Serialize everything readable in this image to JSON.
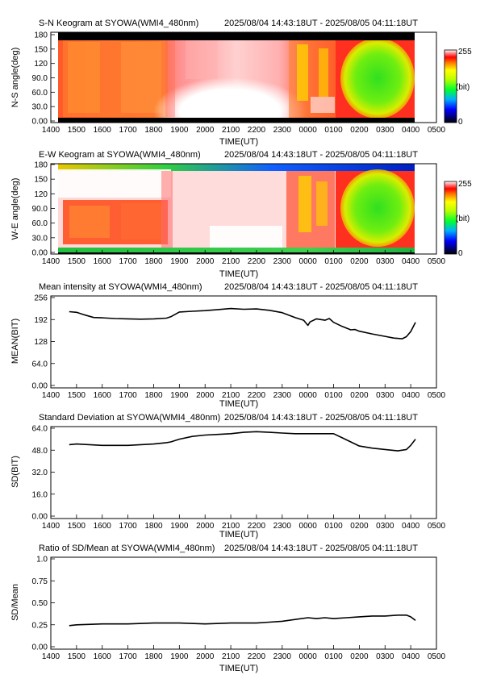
{
  "time_range": "2025/08/04 14:43:18UT - 2025/08/05 04:11:18UT",
  "xlabel": "TIME(UT)",
  "x_ticks": [
    "1400",
    "1500",
    "1600",
    "1700",
    "1800",
    "1900",
    "2000",
    "2100",
    "2200",
    "2300",
    "0000",
    "0100",
    "0200",
    "0300",
    "0400",
    "0500"
  ],
  "colorbar": {
    "max_label": "255",
    "min_label": "0",
    "unit_label": "(bit)"
  },
  "colors": {
    "line": "#000000",
    "frame": "#000000",
    "mask": "#000000"
  },
  "chart_data": [
    {
      "type": "heatmap",
      "title": "S-N Keogram at SYOWA(WMI4_480nm)",
      "ylabel": "N-S angle(deg)",
      "y_ticks": [
        "0.00",
        "30.0",
        "60.0",
        "90.0",
        "120",
        "150",
        "180"
      ],
      "ylim": [
        0,
        180
      ],
      "xlim": [
        "14:00",
        "05:00"
      ],
      "data_span": [
        "14:43",
        "04:11"
      ],
      "value_range": [
        0,
        255
      ]
    },
    {
      "type": "heatmap",
      "title": "E-W Keogram at SYOWA(WMI4_480nm)",
      "ylabel": "W-E angle(deg)",
      "y_ticks": [
        "0.00",
        "30.0",
        "60.0",
        "90.0",
        "120",
        "150",
        "180"
      ],
      "ylim": [
        0,
        180
      ],
      "xlim": [
        "14:00",
        "05:00"
      ],
      "data_span": [
        "14:43",
        "04:11"
      ],
      "value_range": [
        0,
        255
      ]
    },
    {
      "type": "line",
      "title": "Mean intensity at SYOWA(WMI4_480nm)",
      "ylabel": "MEAN(BIT)",
      "y_ticks": [
        "0.00",
        "64.0",
        "128",
        "192",
        "256"
      ],
      "ylim": [
        0,
        256
      ],
      "x": [
        "14:43",
        "15:00",
        "15:20",
        "15:40",
        "16:00",
        "16:30",
        "17:00",
        "17:30",
        "18:00",
        "18:30",
        "18:40",
        "19:00",
        "19:30",
        "20:00",
        "20:30",
        "21:00",
        "21:30",
        "22:00",
        "22:30",
        "23:00",
        "23:30",
        "23:50",
        "00:00",
        "00:05",
        "00:20",
        "00:40",
        "00:50",
        "01:00",
        "01:20",
        "01:40",
        "01:50",
        "02:00",
        "02:30",
        "03:00",
        "03:20",
        "03:40",
        "03:50",
        "04:00",
        "04:11"
      ],
      "values": [
        215,
        213,
        205,
        198,
        197,
        195,
        194,
        193,
        194,
        196,
        200,
        214,
        216,
        218,
        221,
        224,
        222,
        223,
        219,
        212,
        198,
        190,
        175,
        185,
        194,
        190,
        195,
        184,
        172,
        162,
        163,
        158,
        150,
        143,
        138,
        136,
        142,
        157,
        184
      ]
    },
    {
      "type": "line",
      "title": "Standard Deviation at SYOWA(WMI4_480nm)",
      "ylabel": "SD(BIT)",
      "y_ticks": [
        "0.00",
        "16.0",
        "32.0",
        "48.0",
        "64.0"
      ],
      "ylim": [
        0,
        64
      ],
      "x": [
        "14:43",
        "15:00",
        "15:30",
        "16:00",
        "16:30",
        "17:00",
        "17:30",
        "18:00",
        "18:30",
        "18:40",
        "19:00",
        "19:30",
        "20:00",
        "20:30",
        "21:00",
        "21:30",
        "22:00",
        "22:30",
        "23:00",
        "23:30",
        "00:00",
        "00:30",
        "01:00",
        "01:20",
        "01:40",
        "02:00",
        "02:30",
        "03:00",
        "03:30",
        "03:50",
        "04:00",
        "04:11"
      ],
      "values": [
        52,
        52.5,
        52,
        51.5,
        51.5,
        51.5,
        52,
        52.5,
        53.5,
        54,
        56,
        58,
        59,
        59.5,
        60,
        61,
        61.5,
        61,
        60.5,
        60,
        60,
        60,
        60,
        57,
        54,
        51,
        49.5,
        48.5,
        47.5,
        48.5,
        51.5,
        56
      ]
    },
    {
      "type": "line",
      "title": "Ratio of SD/Mean at SYOWA(WMI4_480nm)",
      "ylabel": "SD/Mean",
      "y_ticks": [
        "0.00",
        "0.25",
        "0.50",
        "0.75",
        "1.0"
      ],
      "ylim": [
        0,
        1.0
      ],
      "x": [
        "14:43",
        "15:00",
        "16:00",
        "17:00",
        "18:00",
        "19:00",
        "20:00",
        "21:00",
        "22:00",
        "22:30",
        "23:00",
        "23:30",
        "00:00",
        "00:20",
        "00:40",
        "01:00",
        "01:30",
        "02:00",
        "02:30",
        "03:00",
        "03:30",
        "03:50",
        "04:00",
        "04:11"
      ],
      "values": [
        0.24,
        0.25,
        0.26,
        0.26,
        0.27,
        0.27,
        0.26,
        0.27,
        0.27,
        0.28,
        0.29,
        0.31,
        0.33,
        0.32,
        0.33,
        0.32,
        0.33,
        0.34,
        0.35,
        0.35,
        0.36,
        0.36,
        0.34,
        0.3
      ]
    }
  ]
}
